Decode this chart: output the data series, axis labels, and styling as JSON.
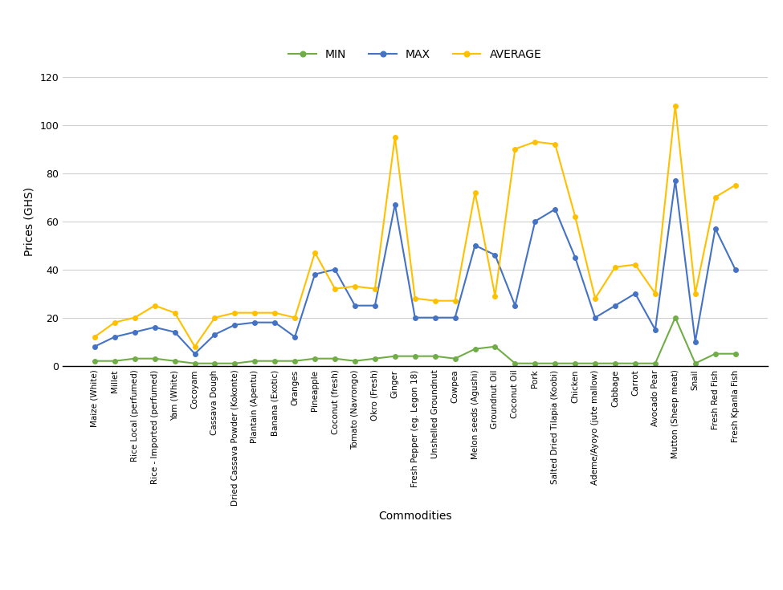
{
  "categories": [
    "Maize (White)",
    "Millet",
    "Rice Local (perfumed)",
    "Rice - Imported (perfumed)",
    "Yam (White)",
    "Cocoyam",
    "Cassava Dough",
    "Dried Cassava Powder (Kokonte)",
    "Plantain (Apentu)",
    "Banana (Exotic)",
    "Oranges",
    "Pineapple",
    "Coconut (fresh)",
    "Tomato (Navrongo)",
    "Okro (Fresh)",
    "Ginger",
    "Fresh Pepper (eg. Legon 18)",
    "Unshelled Groundnut",
    "Cowpea",
    "Melon seeds (Agushi)",
    "Groundnut Oil",
    "Coconut Oil",
    "Pork",
    "Salted Dried Tilapia (Koobi)",
    "Chicken",
    "Ademe/Ayoyo (jute mallow)",
    "Cabbage",
    "Carrot",
    "Avocado Pear",
    "Mutton (Sheep meat)",
    "Snail",
    "Fresh Red Fish",
    "Fresh Kpanla Fish"
  ],
  "min": [
    2,
    2,
    3,
    3,
    2,
    1,
    1,
    1,
    2,
    2,
    2,
    3,
    3,
    2,
    3,
    4,
    4,
    4,
    3,
    7,
    8,
    1,
    1,
    1,
    1,
    1,
    1,
    1,
    1,
    20,
    1,
    5,
    5
  ],
  "max": [
    8,
    12,
    14,
    16,
    14,
    5,
    13,
    17,
    18,
    18,
    12,
    38,
    40,
    25,
    25,
    67,
    20,
    20,
    20,
    50,
    46,
    25,
    60,
    65,
    45,
    20,
    25,
    30,
    15,
    77,
    10,
    57,
    40
  ],
  "average": [
    12,
    18,
    20,
    25,
    22,
    8,
    20,
    22,
    22,
    22,
    20,
    47,
    32,
    33,
    32,
    95,
    28,
    27,
    27,
    72,
    29,
    90,
    93,
    92,
    62,
    28,
    41,
    42,
    30,
    108,
    30,
    70,
    75
  ],
  "min_color": "#70ad47",
  "max_color": "#4472c4",
  "average_color": "#ffc000",
  "ylabel": "Prices (GHS)",
  "xlabel": "Commodities",
  "ylim": [
    0,
    120
  ],
  "yticks": [
    0,
    20,
    40,
    60,
    80,
    100,
    120
  ],
  "marker": "o",
  "marker_size": 4,
  "line_width": 1.5
}
